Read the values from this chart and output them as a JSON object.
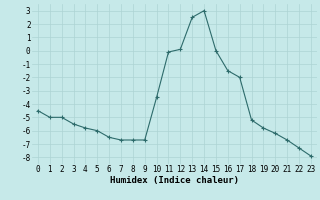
{
  "x": [
    0,
    1,
    2,
    3,
    4,
    5,
    6,
    7,
    8,
    9,
    10,
    11,
    12,
    13,
    14,
    15,
    16,
    17,
    18,
    19,
    20,
    21,
    22,
    23
  ],
  "y": [
    -4.5,
    -5.0,
    -5.0,
    -5.5,
    -5.8,
    -6.0,
    -6.5,
    -6.7,
    -6.7,
    -6.7,
    -3.5,
    -0.1,
    0.1,
    2.5,
    3.0,
    0.0,
    -1.5,
    -2.0,
    -5.2,
    -5.8,
    -6.2,
    -6.7,
    -7.3,
    -7.9
  ],
  "line_color": "#2d6b6b",
  "marker": "+",
  "marker_size": 3,
  "marker_linewidth": 0.8,
  "line_width": 0.8,
  "bg_color": "#c6e9e9",
  "grid_color": "#add4d4",
  "xlabel": "Humidex (Indice chaleur)",
  "ylim": [
    -8.5,
    3.5
  ],
  "xlim": [
    -0.5,
    23.5
  ],
  "yticks": [
    -8,
    -7,
    -6,
    -5,
    -4,
    -3,
    -2,
    -1,
    0,
    1,
    2,
    3
  ],
  "xticks": [
    0,
    1,
    2,
    3,
    4,
    5,
    6,
    7,
    8,
    9,
    10,
    11,
    12,
    13,
    14,
    15,
    16,
    17,
    18,
    19,
    20,
    21,
    22,
    23
  ],
  "label_fontsize": 6.5,
  "tick_fontsize": 5.5
}
